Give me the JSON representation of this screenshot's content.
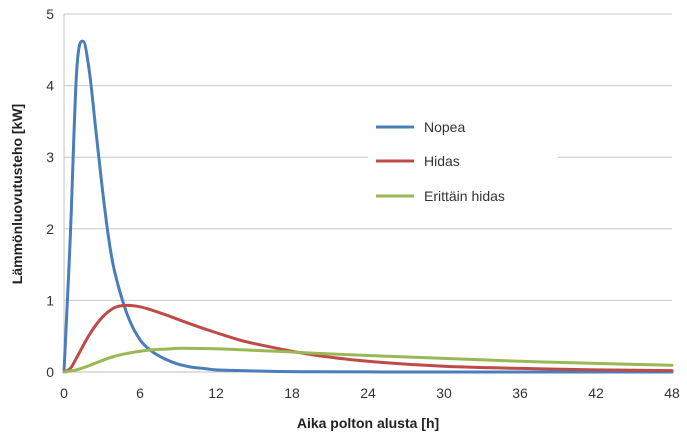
{
  "chart_data": {
    "type": "line",
    "title": "",
    "xlabel": "Aika polton alusta [h]",
    "ylabel": "Lämmönluovutusteho [kW]",
    "xlim": [
      0,
      48
    ],
    "ylim": [
      0,
      5
    ],
    "xticks": [
      0,
      6,
      12,
      18,
      24,
      30,
      36,
      42,
      48
    ],
    "yticks": [
      0,
      1,
      2,
      3,
      4,
      5
    ],
    "grid": "horizontal",
    "legend_position": "right-center",
    "series": [
      {
        "name": "Nopea",
        "color": "#4a7ebb",
        "x": [
          0,
          0.5,
          1,
          1.5,
          2,
          2.5,
          3,
          3.5,
          4,
          5,
          6,
          7,
          8,
          9,
          10,
          11,
          12,
          14,
          16,
          18,
          20,
          24,
          30,
          36,
          42,
          48
        ],
        "y": [
          0,
          1.9,
          4.2,
          4.62,
          4.2,
          3.4,
          2.6,
          1.9,
          1.4,
          0.8,
          0.45,
          0.28,
          0.18,
          0.11,
          0.07,
          0.05,
          0.03,
          0.02,
          0.01,
          0.005,
          0.003,
          0.001,
          0,
          0,
          0,
          0
        ]
      },
      {
        "name": "Hidas",
        "color": "#be4b48",
        "x": [
          0,
          0.5,
          1,
          2,
          3,
          4,
          5,
          6,
          7,
          8,
          10,
          12,
          14,
          16,
          18,
          20,
          24,
          30,
          36,
          42,
          48
        ],
        "y": [
          0,
          0.05,
          0.2,
          0.52,
          0.76,
          0.9,
          0.93,
          0.91,
          0.86,
          0.8,
          0.67,
          0.55,
          0.44,
          0.36,
          0.29,
          0.23,
          0.15,
          0.08,
          0.05,
          0.03,
          0.02
        ]
      },
      {
        "name": "Erittäin hidas",
        "color": "#98b954",
        "x": [
          0,
          1,
          2,
          3,
          4,
          5,
          6,
          7,
          8,
          9,
          10,
          12,
          14,
          16,
          18,
          20,
          24,
          30,
          36,
          42,
          48
        ],
        "y": [
          0,
          0.03,
          0.09,
          0.16,
          0.22,
          0.26,
          0.29,
          0.31,
          0.32,
          0.33,
          0.33,
          0.325,
          0.31,
          0.295,
          0.28,
          0.26,
          0.23,
          0.19,
          0.15,
          0.12,
          0.095
        ]
      }
    ]
  }
}
